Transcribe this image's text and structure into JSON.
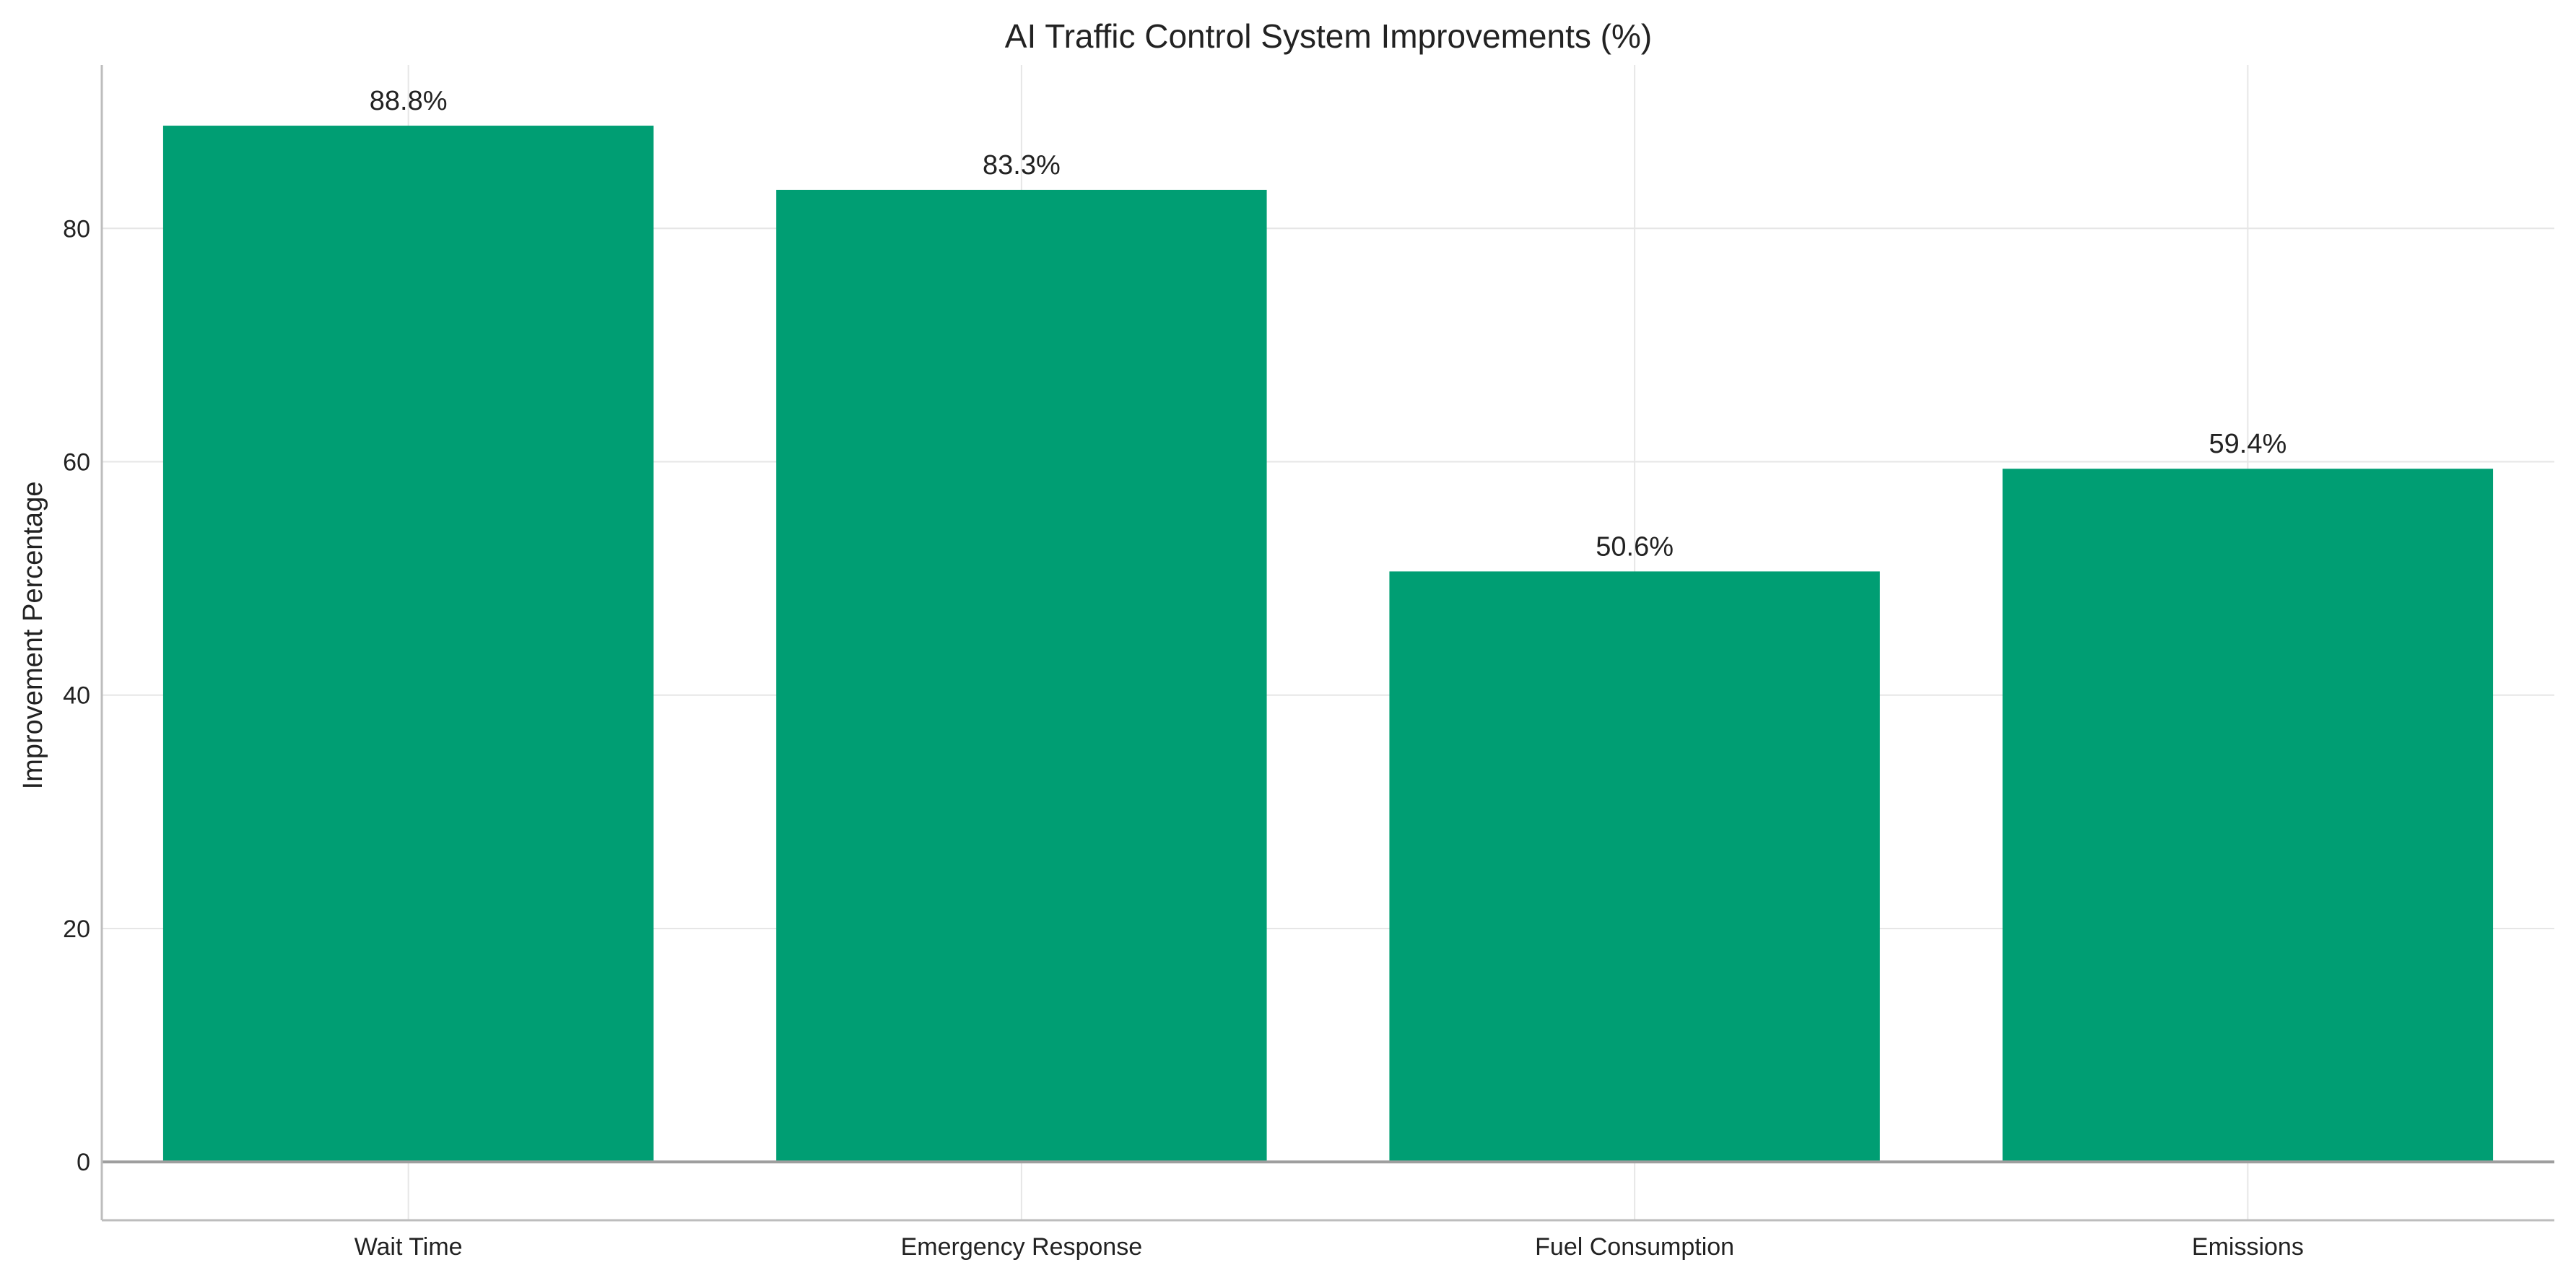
{
  "chart_data": {
    "type": "bar",
    "title": "AI Traffic Control System Improvements (%)",
    "xlabel": "",
    "ylabel": "Improvement Percentage",
    "categories": [
      "Wait Time",
      "Emergency Response",
      "Fuel Consumption",
      "Emissions"
    ],
    "values": [
      88.8,
      83.3,
      50.6,
      59.4
    ],
    "value_labels": [
      "88.8%",
      "83.3%",
      "50.6%",
      "59.4%"
    ],
    "ylim": [
      -5,
      94
    ],
    "yticks": [
      0,
      20,
      40,
      60,
      80
    ],
    "ytick_labels": [
      "0",
      "20",
      "40",
      "60",
      "80"
    ],
    "grid": true,
    "bar_color": "#009E73"
  }
}
